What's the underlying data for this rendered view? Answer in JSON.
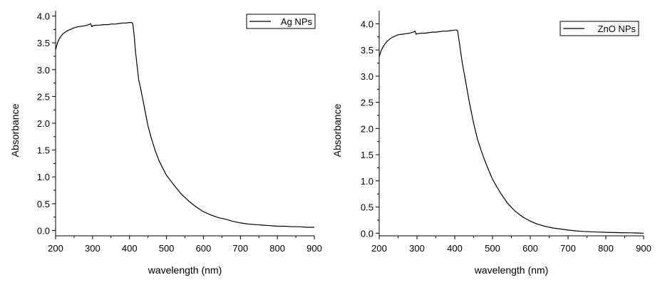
{
  "chart_data": [
    {
      "type": "line",
      "xlabel": "wavelength (nm)",
      "ylabel": "Absorbance",
      "xlim": [
        200,
        900
      ],
      "ylim": [
        -0.1,
        4.1
      ],
      "xticks": [
        200,
        300,
        400,
        500,
        600,
        700,
        800,
        900
      ],
      "yticks": [
        0.0,
        0.5,
        1.0,
        1.5,
        2.0,
        2.5,
        3.0,
        3.5,
        4.0
      ],
      "ytick_labels": [
        "0.0",
        "0.5",
        "1.0",
        "1.5",
        "2.0",
        "2.5",
        "3.0",
        "3.5",
        "4.0"
      ],
      "grid": false,
      "legend": "top-right",
      "series": [
        {
          "name": "Ag NPs",
          "color": "#000000",
          "x": [
            200,
            205,
            210,
            220,
            230,
            240,
            250,
            260,
            270,
            280,
            290,
            295,
            298,
            300,
            310,
            320,
            330,
            340,
            350,
            360,
            370,
            380,
            390,
            400,
            405,
            408,
            410,
            413,
            416,
            420,
            425,
            430,
            440,
            450,
            460,
            470,
            480,
            490,
            500,
            520,
            540,
            560,
            580,
            600,
            620,
            640,
            660,
            680,
            700,
            720,
            740,
            760,
            780,
            800,
            820,
            840,
            860,
            880,
            900
          ],
          "y": [
            3.37,
            3.5,
            3.58,
            3.67,
            3.72,
            3.75,
            3.78,
            3.8,
            3.81,
            3.82,
            3.84,
            3.86,
            3.8,
            3.82,
            3.83,
            3.83,
            3.84,
            3.84,
            3.85,
            3.85,
            3.86,
            3.87,
            3.87,
            3.88,
            3.88,
            3.87,
            3.8,
            3.6,
            3.35,
            3.1,
            2.8,
            2.65,
            2.3,
            1.95,
            1.7,
            1.48,
            1.3,
            1.16,
            1.03,
            0.85,
            0.68,
            0.55,
            0.44,
            0.35,
            0.29,
            0.24,
            0.21,
            0.17,
            0.14,
            0.12,
            0.11,
            0.1,
            0.09,
            0.08,
            0.08,
            0.07,
            0.07,
            0.06,
            0.06
          ]
        }
      ]
    },
    {
      "type": "line",
      "xlabel": "wavelength (nm)",
      "ylabel": "Absorbance",
      "xlim": [
        200,
        900
      ],
      "ylim": [
        -0.05,
        4.25
      ],
      "xticks": [
        200,
        300,
        400,
        500,
        600,
        700,
        800,
        900
      ],
      "yticks": [
        0.0,
        0.5,
        1.0,
        1.5,
        2.0,
        2.5,
        3.0,
        3.5,
        4.0
      ],
      "ytick_labels": [
        "0.0",
        "0.5",
        "1.0",
        "1.5",
        "2.0",
        "2.5",
        "3.0",
        "3.5",
        "4.0"
      ],
      "grid": false,
      "legend": "top-right",
      "series": [
        {
          "name": "ZnO NPs",
          "color": "#000000",
          "x": [
            200,
            205,
            210,
            220,
            230,
            240,
            250,
            260,
            270,
            280,
            290,
            295,
            298,
            300,
            310,
            320,
            330,
            340,
            350,
            360,
            370,
            380,
            390,
            400,
            405,
            408,
            410,
            413,
            416,
            420,
            425,
            430,
            440,
            450,
            460,
            470,
            480,
            490,
            500,
            520,
            540,
            560,
            580,
            600,
            620,
            640,
            660,
            680,
            700,
            720,
            740,
            760,
            780,
            800,
            820,
            840,
            860,
            880,
            900
          ],
          "y": [
            3.37,
            3.48,
            3.56,
            3.66,
            3.72,
            3.76,
            3.79,
            3.8,
            3.81,
            3.82,
            3.84,
            3.86,
            3.8,
            3.81,
            3.82,
            3.82,
            3.83,
            3.84,
            3.84,
            3.85,
            3.86,
            3.86,
            3.87,
            3.88,
            3.88,
            3.86,
            3.75,
            3.6,
            3.45,
            3.25,
            3.05,
            2.85,
            2.45,
            2.1,
            1.8,
            1.58,
            1.38,
            1.2,
            1.03,
            0.78,
            0.57,
            0.42,
            0.31,
            0.23,
            0.17,
            0.13,
            0.1,
            0.08,
            0.06,
            0.045,
            0.035,
            0.028,
            0.022,
            0.017,
            0.013,
            0.01,
            0.008,
            0.005,
            0.0
          ]
        }
      ]
    }
  ]
}
